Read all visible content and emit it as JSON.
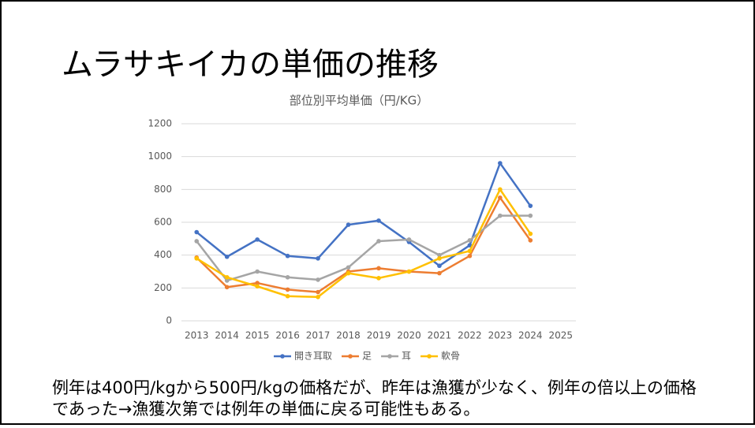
{
  "title": "ムラサキイカの単価の推移",
  "chart_data": {
    "type": "line",
    "title": "部位別平均単価（円/KG）",
    "categories": [
      "2013",
      "2014",
      "2015",
      "2016",
      "2017",
      "2018",
      "2019",
      "2020",
      "2021",
      "2022",
      "2023",
      "2024",
      "2025"
    ],
    "series": [
      {
        "name": "開き耳取",
        "color": "#4472c4",
        "values": [
          540,
          390,
          495,
          395,
          380,
          585,
          610,
          480,
          335,
          460,
          960,
          700,
          null
        ]
      },
      {
        "name": "足",
        "color": "#ed7d31",
        "values": [
          385,
          205,
          230,
          190,
          175,
          300,
          320,
          300,
          290,
          395,
          750,
          490,
          null
        ]
      },
      {
        "name": "耳",
        "color": "#a5a5a5",
        "values": [
          485,
          245,
          300,
          265,
          250,
          325,
          485,
          495,
          400,
          490,
          640,
          640,
          null
        ]
      },
      {
        "name": "軟骨",
        "color": "#ffc000",
        "values": [
          380,
          265,
          210,
          150,
          145,
          290,
          260,
          300,
          380,
          425,
          800,
          530,
          null
        ]
      }
    ],
    "ylim": [
      0,
      1200
    ],
    "yticks": [
      0,
      200,
      400,
      600,
      800,
      1000,
      1200
    ],
    "grid": true,
    "legend": "bottom"
  },
  "note": [
    "例年は400円/kgから500円/kgの価格だが、昨年は漁獲が少なく、例年の倍以上の価格",
    "であった→漁獲次第では例年の単価に戻る可能性もある。"
  ]
}
